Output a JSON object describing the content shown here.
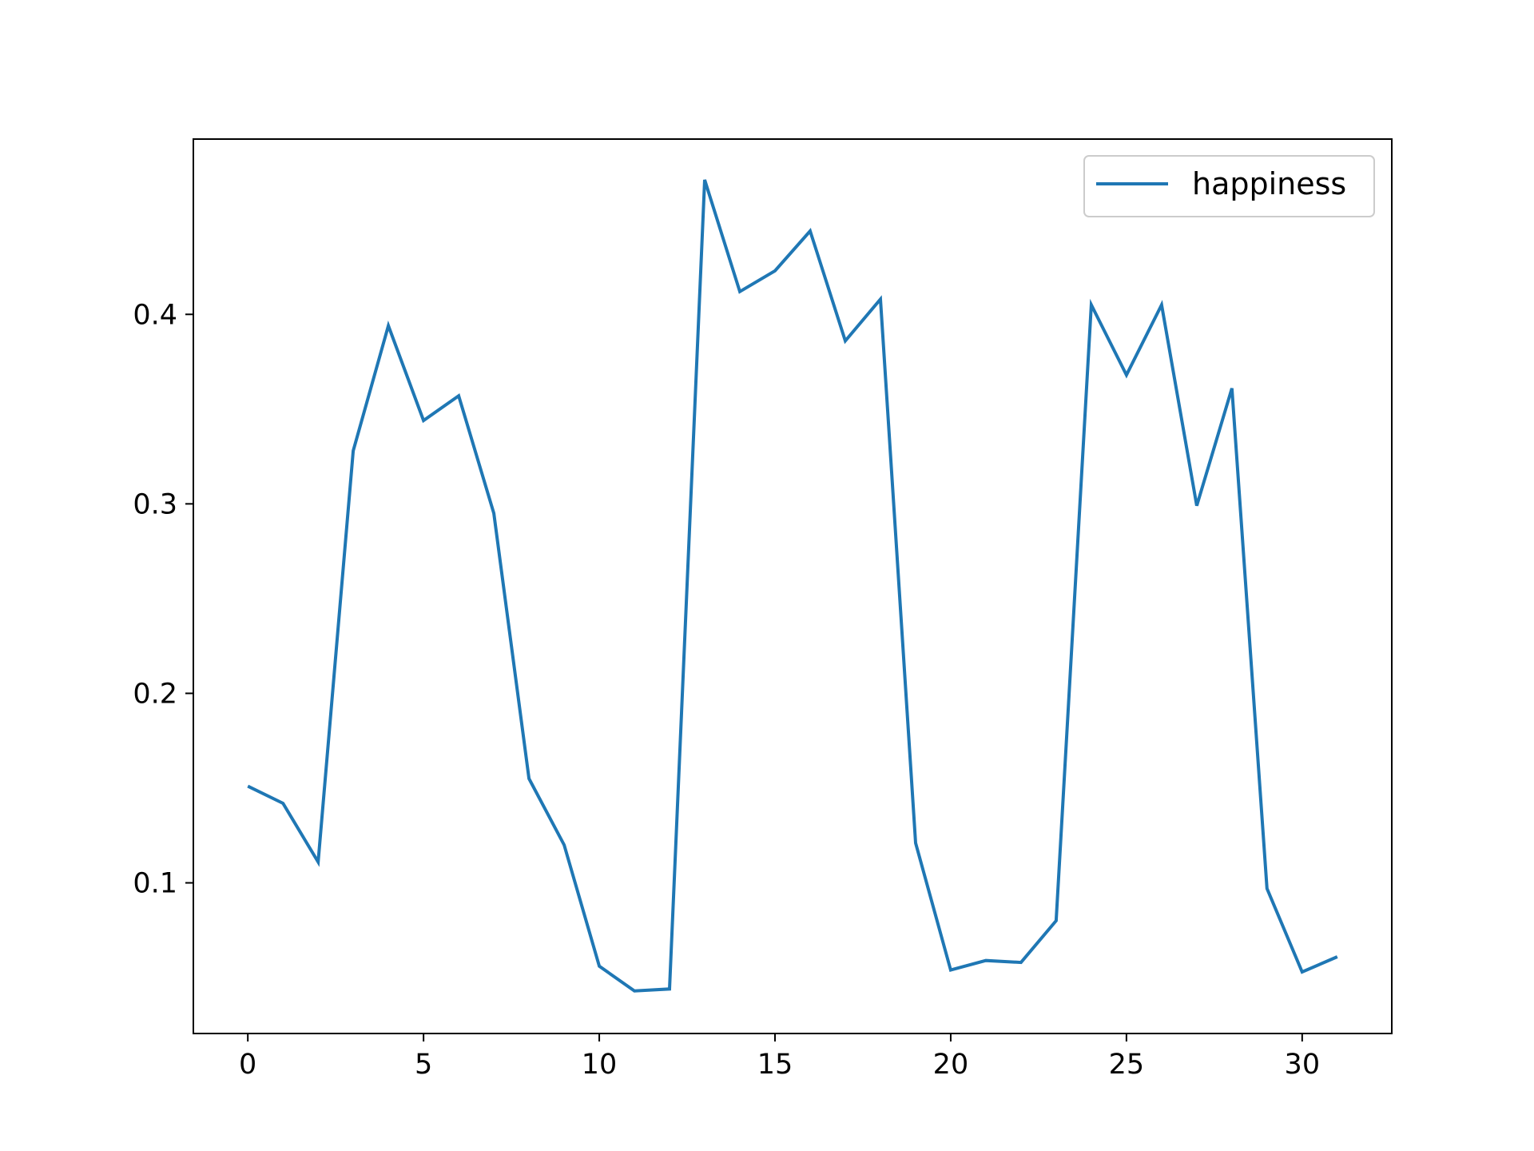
{
  "chart_data": {
    "type": "line",
    "title": "",
    "xlabel": "",
    "ylabel": "",
    "xlim": [
      -1.55,
      32.55
    ],
    "ylim": [
      0.0205,
      0.4925
    ],
    "xticks": [
      0,
      5,
      10,
      15,
      20,
      25,
      30
    ],
    "xtick_labels": [
      "0",
      "5",
      "10",
      "15",
      "20",
      "25",
      "30"
    ],
    "yticks": [
      0.1,
      0.2,
      0.3,
      0.4
    ],
    "ytick_labels": [
      "0.1",
      "0.2",
      "0.3",
      "0.4"
    ],
    "grid": false,
    "legend_position": "top-right",
    "series": [
      {
        "name": "happiness",
        "color": "#1f77b4",
        "x": [
          0,
          1,
          2,
          3,
          4,
          5,
          6,
          7,
          8,
          9,
          10,
          11,
          12,
          13,
          14,
          15,
          16,
          17,
          18,
          19,
          20,
          21,
          22,
          23,
          24,
          25,
          26,
          27,
          28,
          29,
          30,
          31
        ],
        "y": [
          0.151,
          0.142,
          0.111,
          0.328,
          0.394,
          0.344,
          0.357,
          0.295,
          0.155,
          0.12,
          0.056,
          0.043,
          0.044,
          0.471,
          0.412,
          0.423,
          0.444,
          0.386,
          0.408,
          0.121,
          0.054,
          0.059,
          0.058,
          0.08,
          0.405,
          0.368,
          0.405,
          0.299,
          0.361,
          0.097,
          0.053,
          0.061
        ]
      }
    ]
  }
}
